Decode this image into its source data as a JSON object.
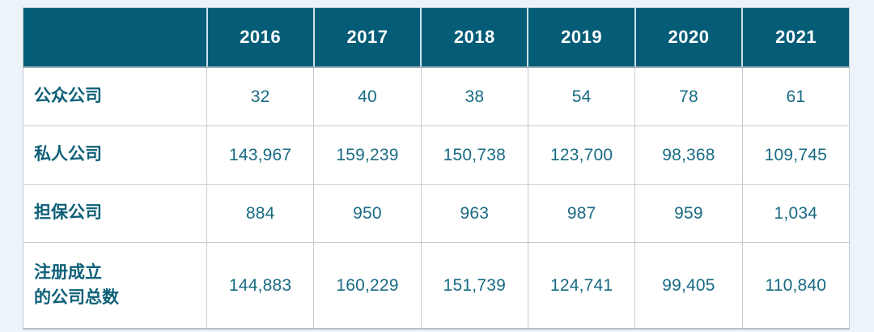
{
  "page": {
    "background_color": "#ecf4f9",
    "header_fill_color": "#045c77",
    "header_text_color": "#ffffff",
    "body_text_color": "#186b83",
    "row_label_color": "#0e6078",
    "grid_line_color": "#c6cbd0"
  },
  "chart_data": {
    "type": "table",
    "title": "",
    "corner_label": "",
    "columns": [
      "2016",
      "2017",
      "2018",
      "2019",
      "2020",
      "2021"
    ],
    "rows": [
      {
        "label": "公众公司",
        "values": [
          "32",
          "40",
          "38",
          "54",
          "78",
          "61"
        ]
      },
      {
        "label": "私人公司",
        "values": [
          "143,967",
          "159,239",
          "150,738",
          "123,700",
          "98,368",
          "109,745"
        ]
      },
      {
        "label": "担保公司",
        "values": [
          "884",
          "950",
          "963",
          "987",
          "959",
          "1,034"
        ]
      },
      {
        "label": "注册成立\n的公司总数",
        "values": [
          "144,883",
          "160,229",
          "151,739",
          "124,741",
          "99,405",
          "110,840"
        ]
      }
    ]
  }
}
